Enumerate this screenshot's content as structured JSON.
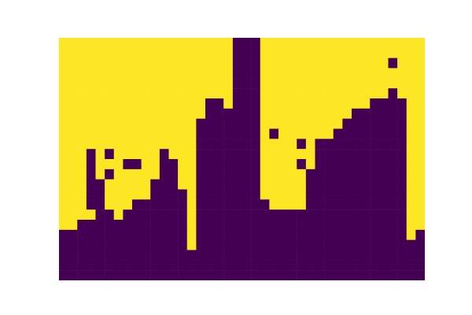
{
  "chart_data": {
    "type": "heatmap",
    "tick_labels": false,
    "colors": [
      "#440154",
      "#fde725"
    ],
    "cells": [
      [
        1,
        1,
        1,
        1,
        1,
        1,
        1,
        1,
        1,
        1,
        1,
        1,
        1,
        1,
        1,
        1,
        1,
        1,
        1,
        0,
        0,
        0,
        1,
        1,
        1,
        1,
        1,
        1,
        1,
        1,
        1,
        1,
        1,
        1,
        1,
        1,
        1,
        1,
        1,
        1
      ],
      [
        1,
        1,
        1,
        1,
        1,
        1,
        1,
        1,
        1,
        1,
        1,
        1,
        1,
        1,
        1,
        1,
        1,
        1,
        1,
        0,
        0,
        0,
        1,
        1,
        1,
        1,
        1,
        1,
        1,
        1,
        1,
        1,
        1,
        1,
        1,
        1,
        1,
        1,
        1,
        1
      ],
      [
        1,
        1,
        1,
        1,
        1,
        1,
        1,
        1,
        1,
        1,
        1,
        1,
        1,
        1,
        1,
        1,
        1,
        1,
        1,
        0,
        0,
        0,
        1,
        1,
        1,
        1,
        1,
        1,
        1,
        1,
        1,
        1,
        1,
        1,
        1,
        1,
        0,
        1,
        1,
        1
      ],
      [
        1,
        1,
        1,
        1,
        1,
        1,
        1,
        1,
        1,
        1,
        1,
        1,
        1,
        1,
        1,
        1,
        1,
        1,
        1,
        0,
        0,
        0,
        1,
        1,
        1,
        1,
        1,
        1,
        1,
        1,
        1,
        1,
        1,
        1,
        1,
        1,
        1,
        1,
        1,
        1
      ],
      [
        1,
        1,
        1,
        1,
        1,
        1,
        1,
        1,
        1,
        1,
        1,
        1,
        1,
        1,
        1,
        1,
        1,
        1,
        1,
        0,
        0,
        0,
        1,
        1,
        1,
        1,
        1,
        1,
        1,
        1,
        1,
        1,
        1,
        1,
        1,
        1,
        1,
        1,
        1,
        1
      ],
      [
        1,
        1,
        1,
        1,
        1,
        1,
        1,
        1,
        1,
        1,
        1,
        1,
        1,
        1,
        1,
        1,
        1,
        1,
        1,
        0,
        0,
        0,
        1,
        1,
        1,
        1,
        1,
        1,
        1,
        1,
        1,
        1,
        1,
        1,
        1,
        1,
        0,
        1,
        1,
        1
      ],
      [
        1,
        1,
        1,
        1,
        1,
        1,
        1,
        1,
        1,
        1,
        1,
        1,
        1,
        1,
        1,
        1,
        0,
        0,
        1,
        0,
        0,
        0,
        1,
        1,
        1,
        1,
        1,
        1,
        1,
        1,
        1,
        1,
        1,
        1,
        0,
        0,
        0,
        0,
        1,
        1
      ],
      [
        1,
        1,
        1,
        1,
        1,
        1,
        1,
        1,
        1,
        1,
        1,
        1,
        1,
        1,
        1,
        1,
        0,
        0,
        0,
        0,
        0,
        0,
        1,
        1,
        1,
        1,
        1,
        1,
        1,
        1,
        1,
        1,
        0,
        0,
        0,
        0,
        0,
        0,
        1,
        1
      ],
      [
        1,
        1,
        1,
        1,
        1,
        1,
        1,
        1,
        1,
        1,
        1,
        1,
        1,
        1,
        1,
        0,
        0,
        0,
        0,
        0,
        0,
        0,
        1,
        1,
        1,
        1,
        1,
        1,
        1,
        1,
        1,
        0,
        0,
        0,
        0,
        0,
        0,
        0,
        1,
        1
      ],
      [
        1,
        1,
        1,
        1,
        1,
        1,
        1,
        1,
        1,
        1,
        1,
        1,
        1,
        1,
        1,
        0,
        0,
        0,
        0,
        0,
        0,
        0,
        1,
        0,
        1,
        1,
        1,
        1,
        1,
        1,
        0,
        0,
        0,
        0,
        0,
        0,
        0,
        0,
        1,
        1
      ],
      [
        1,
        1,
        1,
        1,
        1,
        1,
        1,
        1,
        1,
        1,
        1,
        1,
        1,
        1,
        1,
        0,
        0,
        0,
        0,
        0,
        0,
        0,
        1,
        1,
        1,
        1,
        0,
        1,
        0,
        0,
        0,
        0,
        0,
        0,
        0,
        0,
        0,
        0,
        1,
        1
      ],
      [
        1,
        1,
        1,
        0,
        1,
        0,
        1,
        1,
        1,
        1,
        1,
        0,
        1,
        1,
        1,
        0,
        0,
        0,
        0,
        0,
        0,
        0,
        1,
        1,
        1,
        1,
        1,
        1,
        0,
        0,
        0,
        0,
        0,
        0,
        0,
        0,
        0,
        0,
        1,
        1
      ],
      [
        1,
        1,
        1,
        0,
        1,
        1,
        1,
        0,
        0,
        1,
        1,
        0,
        0,
        1,
        1,
        0,
        0,
        0,
        0,
        0,
        0,
        0,
        1,
        1,
        1,
        1,
        0,
        1,
        0,
        0,
        0,
        0,
        0,
        0,
        0,
        0,
        0,
        0,
        1,
        1
      ],
      [
        1,
        1,
        1,
        0,
        1,
        0,
        1,
        1,
        1,
        1,
        1,
        0,
        0,
        1,
        1,
        0,
        0,
        0,
        0,
        0,
        0,
        0,
        1,
        1,
        1,
        1,
        1,
        0,
        0,
        0,
        0,
        0,
        0,
        0,
        0,
        0,
        0,
        0,
        1,
        1
      ],
      [
        1,
        1,
        1,
        0,
        0,
        1,
        1,
        1,
        1,
        1,
        0,
        0,
        0,
        1,
        1,
        0,
        0,
        0,
        0,
        0,
        0,
        0,
        1,
        1,
        1,
        1,
        1,
        0,
        0,
        0,
        0,
        0,
        0,
        0,
        0,
        0,
        0,
        0,
        1,
        1
      ],
      [
        1,
        1,
        1,
        0,
        0,
        1,
        1,
        1,
        1,
        1,
        0,
        0,
        0,
        0,
        1,
        0,
        0,
        0,
        0,
        0,
        0,
        0,
        1,
        1,
        1,
        1,
        1,
        0,
        0,
        0,
        0,
        0,
        0,
        0,
        0,
        0,
        0,
        0,
        1,
        1
      ],
      [
        1,
        1,
        1,
        0,
        0,
        1,
        1,
        1,
        0,
        0,
        0,
        0,
        0,
        0,
        1,
        0,
        0,
        0,
        0,
        0,
        0,
        0,
        0,
        1,
        1,
        1,
        1,
        0,
        0,
        0,
        0,
        0,
        0,
        0,
        0,
        0,
        0,
        0,
        1,
        1
      ],
      [
        1,
        1,
        1,
        1,
        0,
        0,
        1,
        0,
        0,
        0,
        0,
        0,
        0,
        0,
        1,
        0,
        0,
        0,
        0,
        0,
        0,
        0,
        0,
        0,
        0,
        0,
        0,
        0,
        0,
        0,
        0,
        0,
        0,
        0,
        0,
        0,
        0,
        0,
        1,
        1
      ],
      [
        1,
        1,
        0,
        0,
        0,
        0,
        0,
        0,
        0,
        0,
        0,
        0,
        0,
        0,
        1,
        0,
        0,
        0,
        0,
        0,
        0,
        0,
        0,
        0,
        0,
        0,
        0,
        0,
        0,
        0,
        0,
        0,
        0,
        0,
        0,
        0,
        0,
        0,
        1,
        1
      ],
      [
        0,
        0,
        0,
        0,
        0,
        0,
        0,
        0,
        0,
        0,
        0,
        0,
        0,
        0,
        1,
        0,
        0,
        0,
        0,
        0,
        0,
        0,
        0,
        0,
        0,
        0,
        0,
        0,
        0,
        0,
        0,
        0,
        0,
        0,
        0,
        0,
        0,
        0,
        1,
        0
      ],
      [
        0,
        0,
        0,
        0,
        0,
        0,
        0,
        0,
        0,
        0,
        0,
        0,
        0,
        0,
        1,
        0,
        0,
        0,
        0,
        0,
        0,
        0,
        0,
        0,
        0,
        0,
        0,
        0,
        0,
        0,
        0,
        0,
        0,
        0,
        0,
        0,
        0,
        0,
        0,
        0
      ],
      [
        0,
        0,
        0,
        0,
        0,
        0,
        0,
        0,
        0,
        0,
        0,
        0,
        0,
        0,
        0,
        0,
        0,
        0,
        0,
        0,
        0,
        0,
        0,
        0,
        0,
        0,
        0,
        0,
        0,
        0,
        0,
        0,
        0,
        0,
        0,
        0,
        0,
        0,
        0,
        0
      ],
      [
        0,
        0,
        0,
        0,
        0,
        0,
        0,
        0,
        0,
        0,
        0,
        0,
        0,
        0,
        0,
        0,
        0,
        0,
        0,
        0,
        0,
        0,
        0,
        0,
        0,
        0,
        0,
        0,
        0,
        0,
        0,
        0,
        0,
        0,
        0,
        0,
        0,
        0,
        0,
        0
      ],
      [
        0,
        0,
        0,
        0,
        0,
        0,
        0,
        0,
        0,
        0,
        0,
        0,
        0,
        0,
        0,
        0,
        0,
        0,
        0,
        0,
        0,
        0,
        0,
        0,
        0,
        0,
        0,
        0,
        0,
        0,
        0,
        0,
        0,
        0,
        0,
        0,
        0,
        0,
        0,
        0
      ]
    ]
  }
}
